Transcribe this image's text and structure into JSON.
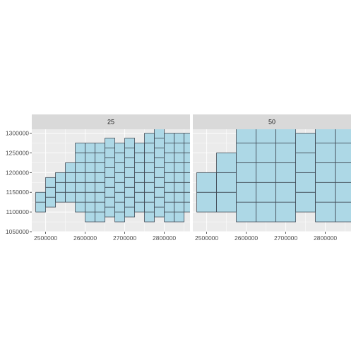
{
  "chart_data": [
    {
      "type": "heatmap",
      "facet_label": "25",
      "cell_size": 25000,
      "fill_color": "#add8e6",
      "border_color": "#404a55",
      "xlim": [
        2465000,
        2865000
      ],
      "ylim": [
        1050000,
        1310000
      ],
      "x_ticks": [
        2500000,
        2600000,
        2700000,
        2800000
      ],
      "x_tick_labels": [
        "2500000",
        "2600000",
        "2700000",
        "2800000"
      ],
      "y_ticks": [
        1050000,
        1100000,
        1150000,
        1200000,
        1250000,
        1300000
      ],
      "y_tick_labels": [
        "1050000",
        "1100000",
        "1150000",
        "1200000",
        "1250000",
        "1300000"
      ],
      "grid": true,
      "columns": [
        {
          "x": 2487500,
          "y_ranges": [
            [
              1100000,
              1150000
            ]
          ]
        },
        {
          "x": 2512500,
          "y_ranges": [
            [
              1112500,
              1187500
            ]
          ]
        },
        {
          "x": 2537500,
          "y_ranges": [
            [
              1125000,
              1200000
            ]
          ]
        },
        {
          "x": 2562500,
          "y_ranges": [
            [
              1125000,
              1225000
            ]
          ]
        },
        {
          "x": 2587500,
          "y_ranges": [
            [
              1100000,
              1262500
            ]
          ]
        },
        {
          "x": 2612500,
          "y_ranges": [
            [
              1075000,
              1262500
            ]
          ]
        },
        {
          "x": 2637500,
          "y_ranges": [
            [
              1075000,
              1262500
            ]
          ]
        },
        {
          "x": 2662500,
          "y_ranges": [
            [
              1087500,
              1275000
            ]
          ]
        },
        {
          "x": 2687500,
          "y_ranges": [
            [
              1075000,
              1275000
            ]
          ]
        },
        {
          "x": 2712500,
          "y_ranges": [
            [
              1087500,
              1275000
            ]
          ]
        },
        {
          "x": 2737500,
          "y_ranges": [
            [
              1100000,
              1275000
            ]
          ]
        },
        {
          "x": 2762500,
          "y_ranges": [
            [
              1075000,
              1287500
            ]
          ]
        },
        {
          "x": 2787500,
          "y_ranges": [
            [
              1087500,
              1300000
            ]
          ]
        },
        {
          "x": 2812500,
          "y_ranges": [
            [
              1075000,
              1300000
            ]
          ]
        },
        {
          "x": 2837500,
          "y_ranges": [
            [
              1075000,
              1287500
            ]
          ]
        },
        {
          "x": 2862500,
          "y_ranges": [
            [
              1100000,
              1287500
            ]
          ]
        }
      ]
    },
    {
      "type": "heatmap",
      "facet_label": "50",
      "cell_size": 50000,
      "fill_color": "#add8e6",
      "border_color": "#404a55",
      "xlim": [
        2465000,
        2865000
      ],
      "ylim": [
        1050000,
        1310000
      ],
      "x_ticks": [
        2500000,
        2600000,
        2700000,
        2800000
      ],
      "x_tick_labels": [
        "2500000",
        "2600000",
        "2700000",
        "2800000"
      ],
      "y_ticks": [
        1050000,
        1100000,
        1150000,
        1200000,
        1250000,
        1300000
      ],
      "y_tick_labels": [
        "1050000",
        "1100000",
        "1150000",
        "1200000",
        "1250000",
        "1300000"
      ],
      "grid": true,
      "columns": [
        {
          "x": 2500000,
          "y_ranges": [
            [
              1100000,
              1200000
            ]
          ]
        },
        {
          "x": 2550000,
          "y_ranges": [
            [
              1100000,
              1250000
            ]
          ]
        },
        {
          "x": 2600000,
          "y_ranges": [
            [
              1075000,
              1300000
            ]
          ]
        },
        {
          "x": 2650000,
          "y_ranges": [
            [
              1075000,
              1300000
            ]
          ]
        },
        {
          "x": 2700000,
          "y_ranges": [
            [
              1075000,
              1300000
            ]
          ]
        },
        {
          "x": 2750000,
          "y_ranges": [
            [
              1100000,
              1300000
            ]
          ]
        },
        {
          "x": 2800000,
          "y_ranges": [
            [
              1075000,
              1325000
            ]
          ]
        },
        {
          "x": 2850000,
          "y_ranges": [
            [
              1075000,
              1300000
            ]
          ]
        }
      ]
    }
  ]
}
